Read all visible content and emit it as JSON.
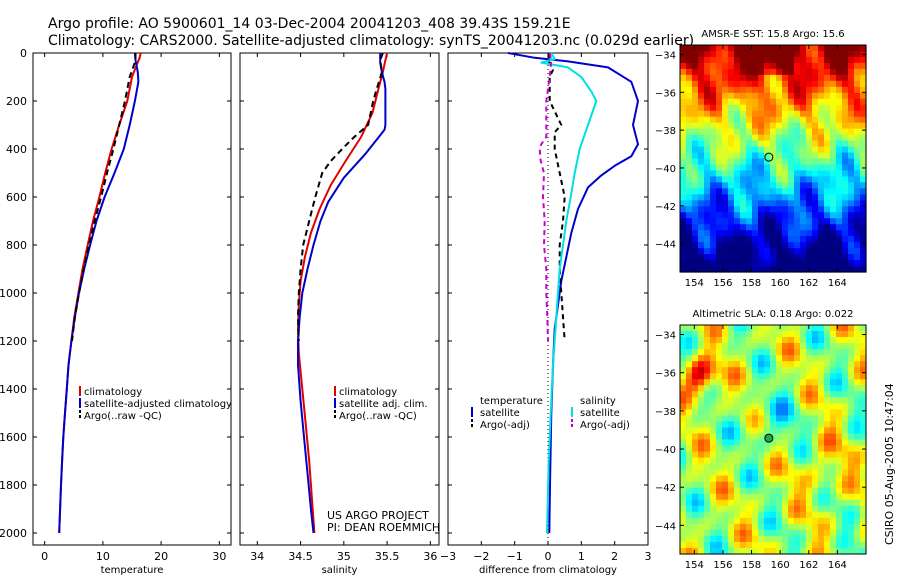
{
  "header": {
    "line1": "Argo profile: AO 5900601_14 03-Dec-2004 20041203_408 39.43S 159.21E",
    "line2": "Climatology: CARS2000. Satellite-adjusted climatology: synTS_20041203.nc (0.029d earlier)"
  },
  "footer": {
    "project": "US ARGO PROJECT",
    "pi": "PI: DEAN ROEMMICH",
    "stamp": "CSIRO 05-Aug-2005 10:47:04"
  },
  "colors": {
    "climatology": "#e00000",
    "satellite": "#0000cc",
    "argo": "#000000",
    "salinity_sat": "#00e0e0",
    "salinity_argo": "#cc00cc"
  },
  "chart_data": [
    {
      "type": "line",
      "id": "temperature",
      "xlabel": "temperature",
      "ylabel": "",
      "xlim": [
        -2,
        32
      ],
      "ylim": [
        2050,
        0
      ],
      "xticks": [
        0,
        10,
        20,
        30
      ],
      "yticks": [
        0,
        200,
        400,
        600,
        800,
        1000,
        1200,
        1400,
        1600,
        1800,
        2000
      ],
      "legend": [
        "climatology",
        "satellite-adjusted climatology",
        "Argo(..raw -QC)"
      ],
      "series": [
        {
          "name": "climatology",
          "color": "#e00000",
          "dash": "",
          "points": [
            [
              16.5,
              0
            ],
            [
              16.3,
              20
            ],
            [
              15.8,
              50
            ],
            [
              15.0,
              100
            ],
            [
              14.2,
              200
            ],
            [
              12.8,
              300
            ],
            [
              11.5,
              400
            ],
            [
              10.4,
              500
            ],
            [
              9.4,
              600
            ],
            [
              8.3,
              700
            ],
            [
              7.4,
              800
            ],
            [
              6.5,
              900
            ],
            [
              5.8,
              1000
            ],
            [
              5.1,
              1100
            ],
            [
              4.6,
              1200
            ],
            [
              4.1,
              1300
            ],
            [
              3.8,
              1400
            ],
            [
              3.5,
              1500
            ],
            [
              3.2,
              1600
            ],
            [
              3.0,
              1700
            ],
            [
              2.8,
              1800
            ],
            [
              2.65,
              1900
            ],
            [
              2.5,
              2000
            ]
          ]
        },
        {
          "name": "satellite-adjusted climatology",
          "color": "#0000cc",
          "dash": "",
          "points": [
            [
              15.5,
              0
            ],
            [
              15.6,
              30
            ],
            [
              16.0,
              80
            ],
            [
              16.1,
              120
            ],
            [
              15.5,
              200
            ],
            [
              14.6,
              300
            ],
            [
              13.6,
              400
            ],
            [
              12.0,
              500
            ],
            [
              10.3,
              600
            ],
            [
              8.9,
              700
            ],
            [
              7.8,
              800
            ],
            [
              6.8,
              900
            ],
            [
              5.9,
              1000
            ],
            [
              5.2,
              1100
            ],
            [
              4.6,
              1200
            ],
            [
              4.1,
              1300
            ],
            [
              3.8,
              1400
            ],
            [
              3.5,
              1500
            ],
            [
              3.2,
              1600
            ],
            [
              3.0,
              1700
            ],
            [
              2.8,
              1800
            ],
            [
              2.65,
              1900
            ],
            [
              2.5,
              2000
            ]
          ]
        },
        {
          "name": "Argo(..raw -QC)",
          "color": "#000000",
          "dash": "6,4",
          "points": [
            [
              15.6,
              0
            ],
            [
              15.6,
              30
            ],
            [
              15.2,
              60
            ],
            [
              14.6,
              100
            ],
            [
              13.8,
              200
            ],
            [
              12.8,
              300
            ],
            [
              11.8,
              400
            ],
            [
              10.7,
              500
            ],
            [
              9.7,
              600
            ],
            [
              8.6,
              700
            ],
            [
              7.6,
              800
            ],
            [
              6.7,
              900
            ],
            [
              5.9,
              1000
            ],
            [
              5.2,
              1100
            ],
            [
              4.7,
              1200
            ]
          ]
        }
      ]
    },
    {
      "type": "line",
      "id": "salinity",
      "xlabel": "salinity",
      "ylabel": "",
      "xlim": [
        33.8,
        36.1
      ],
      "ylim": [
        2050,
        0
      ],
      "xticks": [
        34,
        34.5,
        35,
        35.5,
        36
      ],
      "yticks": [
        0,
        200,
        400,
        600,
        800,
        1000,
        1200,
        1400,
        1600,
        1800,
        2000
      ],
      "legend": [
        "climatology",
        "satellite adj. clim.",
        "Argo(..raw -QC)"
      ],
      "series": [
        {
          "name": "climatology",
          "color": "#e00000",
          "dash": "",
          "points": [
            [
              35.5,
              0
            ],
            [
              35.48,
              30
            ],
            [
              35.45,
              80
            ],
            [
              35.4,
              150
            ],
            [
              35.33,
              250
            ],
            [
              35.2,
              350
            ],
            [
              35.02,
              450
            ],
            [
              34.85,
              550
            ],
            [
              34.72,
              650
            ],
            [
              34.62,
              750
            ],
            [
              34.55,
              850
            ],
            [
              34.5,
              950
            ],
            [
              34.48,
              1050
            ],
            [
              34.47,
              1150
            ],
            [
              34.48,
              1250
            ],
            [
              34.52,
              1400
            ],
            [
              34.56,
              1550
            ],
            [
              34.6,
              1700
            ],
            [
              34.63,
              1850
            ],
            [
              34.66,
              2000
            ]
          ]
        },
        {
          "name": "satellite adj. clim.",
          "color": "#0000cc",
          "dash": "",
          "points": [
            [
              35.42,
              0
            ],
            [
              35.42,
              40
            ],
            [
              35.44,
              80
            ],
            [
              35.47,
              120
            ],
            [
              35.48,
              150
            ],
            [
              35.48,
              300
            ],
            [
              35.47,
              320
            ],
            [
              35.25,
              420
            ],
            [
              35.0,
              520
            ],
            [
              34.82,
              620
            ],
            [
              34.73,
              700
            ],
            [
              34.65,
              800
            ],
            [
              34.58,
              900
            ],
            [
              34.52,
              1000
            ],
            [
              34.49,
              1100
            ],
            [
              34.47,
              1200
            ],
            [
              34.47,
              1300
            ],
            [
              34.5,
              1450
            ],
            [
              34.54,
              1600
            ],
            [
              34.58,
              1750
            ],
            [
              34.62,
              1900
            ],
            [
              34.65,
              2000
            ]
          ]
        },
        {
          "name": "Argo(..raw -QC)",
          "color": "#000000",
          "dash": "6,4",
          "points": [
            [
              35.45,
              0
            ],
            [
              35.42,
              30
            ],
            [
              35.44,
              80
            ],
            [
              35.38,
              150
            ],
            [
              35.34,
              200
            ],
            [
              35.28,
              300
            ],
            [
              35.12,
              350
            ],
            [
              34.98,
              400
            ],
            [
              34.85,
              450
            ],
            [
              34.75,
              500
            ],
            [
              34.67,
              600
            ],
            [
              34.6,
              700
            ],
            [
              34.53,
              800
            ],
            [
              34.5,
              900
            ],
            [
              34.48,
              1000
            ],
            [
              34.47,
              1100
            ],
            [
              34.48,
              1200
            ]
          ]
        }
      ]
    },
    {
      "type": "line",
      "id": "difference",
      "xlabel": "difference from climatology",
      "ylabel": "",
      "xlim": [
        -3,
        3
      ],
      "ylim": [
        2050,
        0
      ],
      "xticks": [
        -3,
        -2,
        -1,
        0,
        1,
        2,
        3
      ],
      "yticks": [
        0,
        200,
        400,
        600,
        800,
        1000,
        1200,
        1400,
        1600,
        1800,
        2000
      ],
      "legend": [
        "temperature",
        "satellite",
        "Argo(-adj)",
        "salinity",
        "satellite",
        "Argo(-adj)"
      ],
      "series": [
        {
          "name": "satellite",
          "group": "temperature",
          "color": "#0000cc",
          "dash": "",
          "points": [
            [
              -1.2,
              0
            ],
            [
              -0.4,
              20
            ],
            [
              0.6,
              35
            ],
            [
              1.8,
              60
            ],
            [
              2.5,
              120
            ],
            [
              2.7,
              200
            ],
            [
              2.55,
              300
            ],
            [
              2.7,
              380
            ],
            [
              2.5,
              430
            ],
            [
              2.0,
              470
            ],
            [
              1.6,
              510
            ],
            [
              1.2,
              560
            ],
            [
              0.9,
              650
            ],
            [
              0.7,
              750
            ],
            [
              0.55,
              850
            ],
            [
              0.4,
              950
            ],
            [
              0.3,
              1050
            ],
            [
              0.2,
              1150
            ],
            [
              0.15,
              1300
            ],
            [
              0.1,
              1500
            ],
            [
              0.06,
              1800
            ],
            [
              0.04,
              2000
            ]
          ]
        },
        {
          "name": "Argo(-adj)",
          "group": "temperature",
          "color": "#000000",
          "dash": "5,4",
          "points": [
            [
              0.05,
              0
            ],
            [
              0.0,
              30
            ],
            [
              0.15,
              70
            ],
            [
              0.05,
              100
            ],
            [
              0.05,
              200
            ],
            [
              0.4,
              300
            ],
            [
              0.2,
              330
            ],
            [
              0.2,
              400
            ],
            [
              0.35,
              500
            ],
            [
              0.5,
              600
            ],
            [
              0.45,
              700
            ],
            [
              0.35,
              800
            ],
            [
              0.35,
              900
            ],
            [
              0.4,
              1000
            ],
            [
              0.45,
              1100
            ],
            [
              0.5,
              1200
            ]
          ]
        },
        {
          "name": "satellite",
          "group": "salinity",
          "color": "#00e0e0",
          "dash": "",
          "points": [
            [
              0.1,
              0
            ],
            [
              0.2,
              25
            ],
            [
              -0.2,
              40
            ],
            [
              0.6,
              60
            ],
            [
              1.0,
              100
            ],
            [
              1.3,
              160
            ],
            [
              1.45,
              200
            ],
            [
              1.2,
              300
            ],
            [
              0.95,
              400
            ],
            [
              0.8,
              500
            ],
            [
              0.68,
              600
            ],
            [
              0.55,
              700
            ],
            [
              0.45,
              800
            ],
            [
              0.35,
              900
            ],
            [
              0.25,
              1100
            ],
            [
              0.15,
              1300
            ],
            [
              0.08,
              1500
            ],
            [
              0.02,
              1700
            ],
            [
              -0.03,
              2000
            ]
          ]
        },
        {
          "name": "Argo(-adj)",
          "group": "salinity",
          "color": "#cc00cc",
          "dash": "5,4",
          "points": [
            [
              0.05,
              0
            ],
            [
              0.1,
              30
            ],
            [
              0.05,
              100
            ],
            [
              -0.05,
              200
            ],
            [
              -0.05,
              350
            ],
            [
              -0.2,
              380
            ],
            [
              -0.25,
              400
            ],
            [
              -0.22,
              450
            ],
            [
              -0.12,
              500
            ],
            [
              -0.15,
              600
            ],
            [
              -0.1,
              700
            ],
            [
              -0.12,
              800
            ],
            [
              -0.05,
              900
            ],
            [
              -0.05,
              1000
            ],
            [
              -0.02,
              1100
            ],
            [
              0.0,
              1200
            ]
          ]
        }
      ]
    },
    {
      "type": "heatmap",
      "id": "sst-map",
      "title": "AMSR-E SST: 15.8 Argo: 15.6",
      "xlim": [
        153,
        166
      ],
      "ylim": [
        -45.5,
        -33.5
      ],
      "xticks": [
        154,
        156,
        158,
        160,
        162,
        164
      ],
      "yticks": [
        -34,
        -36,
        -38,
        -40,
        -42,
        -44
      ],
      "marker": {
        "lon": 159.21,
        "lat": -39.43,
        "fill": "none"
      }
    },
    {
      "type": "heatmap",
      "id": "sla-map",
      "title": "Altimetric SLA: 0.18 Argo: 0.022",
      "xlim": [
        153,
        166
      ],
      "ylim": [
        -45.5,
        -33.5
      ],
      "xticks": [
        154,
        156,
        158,
        160,
        162,
        164
      ],
      "yticks": [
        -34,
        -36,
        -38,
        -40,
        -42,
        -44
      ],
      "marker": {
        "lon": 159.21,
        "lat": -39.43,
        "fill": "#22aa44"
      }
    }
  ]
}
